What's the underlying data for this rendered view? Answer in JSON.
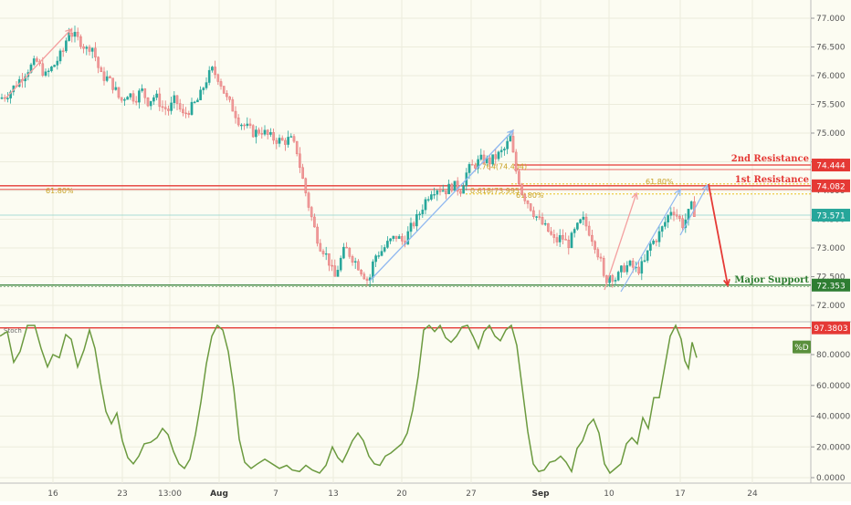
{
  "chart_data": [
    {
      "type": "candlestick",
      "ylim": [
        71.8,
        77.3
      ],
      "y_ticks": [
        "72.000",
        "72.500",
        "73.000",
        "73.500",
        "74.000",
        "74.500",
        "75.000",
        "75.500",
        "76.000",
        "76.500",
        "77.000"
      ],
      "x_ticks": [
        "16",
        "23",
        "13:00",
        "Aug",
        "7",
        "13",
        "20",
        "27",
        "Sep",
        "10",
        "17",
        "24"
      ],
      "x_bold_ticks": [
        "Aug",
        "Sep"
      ],
      "grid": true,
      "price_labels": [
        {
          "label": "74.444",
          "value": 74.444,
          "color": "#e53935"
        },
        {
          "label": "74.082",
          "value": 74.082,
          "color": "#e53935"
        },
        {
          "label": "73.571",
          "value": 73.571,
          "color": "#26a69a"
        },
        {
          "label": "72.353",
          "value": 72.353,
          "color": "#2e7d32"
        }
      ],
      "levels": [
        {
          "name": "2nd Resistance",
          "value": 74.444,
          "color": "#e53935"
        },
        {
          "name": "1st Resistance",
          "value": 74.082,
          "color": "#e53935"
        },
        {
          "name": "Major Support",
          "value": 72.353,
          "color": "#2e7d32"
        }
      ],
      "fib_labels": [
        "61.80%",
        "0.618(73.995)",
        "1.764(74.404)",
        "61.80%",
        "61.80%"
      ],
      "close_path": [
        [
          0,
          75.6
        ],
        [
          10,
          75.7
        ],
        [
          20,
          75.9
        ],
        [
          30,
          76.1
        ],
        [
          40,
          76.25
        ],
        [
          50,
          76.0
        ],
        [
          60,
          76.2
        ],
        [
          70,
          76.45
        ],
        [
          75,
          76.8
        ],
        [
          80,
          76.7
        ],
        [
          88,
          76.6
        ],
        [
          95,
          76.45
        ],
        [
          100,
          76.55
        ],
        [
          105,
          76.3
        ],
        [
          110,
          76.0
        ],
        [
          118,
          75.95
        ],
        [
          125,
          75.8
        ],
        [
          132,
          75.55
        ],
        [
          140,
          75.7
        ],
        [
          148,
          75.6
        ],
        [
          155,
          75.75
        ],
        [
          162,
          75.55
        ],
        [
          170,
          75.65
        ],
        [
          178,
          75.45
        ],
        [
          185,
          75.4
        ],
        [
          192,
          75.6
        ],
        [
          200,
          75.3
        ],
        [
          210,
          75.45
        ],
        [
          218,
          75.6
        ],
        [
          225,
          75.9
        ],
        [
          232,
          76.1
        ],
        [
          240,
          75.95
        ],
        [
          248,
          75.6
        ],
        [
          256,
          75.4
        ],
        [
          262,
          75.2
        ],
        [
          270,
          75.1
        ],
        [
          278,
          75.0
        ],
        [
          286,
          75.05
        ],
        [
          294,
          74.95
        ],
        [
          300,
          74.9
        ],
        [
          310,
          74.85
        ],
        [
          318,
          74.9
        ],
        [
          325,
          74.7
        ],
        [
          330,
          74.3
        ],
        [
          335,
          73.95
        ],
        [
          340,
          73.6
        ],
        [
          345,
          73.3
        ],
        [
          350,
          73.05
        ],
        [
          355,
          72.95
        ],
        [
          362,
          72.7
        ],
        [
          366,
          72.45
        ],
        [
          372,
          72.75
        ],
        [
          378,
          73.0
        ],
        [
          385,
          72.85
        ],
        [
          392,
          72.7
        ],
        [
          398,
          72.55
        ],
        [
          404,
          72.4
        ],
        [
          410,
          72.85
        ],
        [
          418,
          72.95
        ],
        [
          426,
          73.1
        ],
        [
          434,
          73.2
        ],
        [
          442,
          73.1
        ],
        [
          450,
          73.35
        ],
        [
          458,
          73.55
        ],
        [
          465,
          73.8
        ],
        [
          472,
          74.0
        ],
        [
          480,
          74.05
        ],
        [
          488,
          74.0
        ],
        [
          496,
          74.1
        ],
        [
          504,
          74.0
        ],
        [
          512,
          74.35
        ],
        [
          520,
          74.45
        ],
        [
          528,
          74.55
        ],
        [
          536,
          74.5
        ],
        [
          544,
          74.6
        ],
        [
          552,
          74.7
        ],
        [
          560,
          74.95
        ],
        [
          563,
          74.45
        ],
        [
          568,
          74.2
        ],
        [
          572,
          73.95
        ],
        [
          578,
          73.8
        ],
        [
          585,
          73.6
        ],
        [
          592,
          73.45
        ],
        [
          600,
          73.3
        ],
        [
          608,
          73.1
        ],
        [
          615,
          73.2
        ],
        [
          622,
          73.05
        ],
        [
          630,
          73.3
        ],
        [
          638,
          73.5
        ],
        [
          645,
          73.3
        ],
        [
          652,
          73.05
        ],
        [
          658,
          72.75
        ],
        [
          662,
          72.4
        ],
        [
          668,
          72.55
        ],
        [
          675,
          72.45
        ],
        [
          682,
          72.65
        ],
        [
          690,
          72.7
        ],
        [
          698,
          72.6
        ],
        [
          706,
          72.75
        ],
        [
          712,
          73.05
        ],
        [
          718,
          73.15
        ],
        [
          724,
          73.3
        ],
        [
          730,
          73.5
        ],
        [
          736,
          73.7
        ],
        [
          742,
          73.55
        ],
        [
          748,
          73.4
        ],
        [
          754,
          73.6
        ],
        [
          758,
          73.75
        ],
        [
          763,
          73.5
        ]
      ]
    },
    {
      "type": "line",
      "series": [
        {
          "name": "%D",
          "values": [
            [
              0,
              92
            ],
            [
              8,
              95
            ],
            [
              15,
              75
            ],
            [
              22,
              82
            ],
            [
              30,
              99
            ],
            [
              38,
              99
            ],
            [
              45,
              84
            ],
            [
              52,
              72
            ],
            [
              58,
              80
            ],
            [
              65,
              78
            ],
            [
              72,
              93
            ],
            [
              78,
              90
            ],
            [
              85,
              72
            ],
            [
              92,
              83
            ],
            [
              98,
              96
            ],
            [
              104,
              84
            ],
            [
              110,
              62
            ],
            [
              116,
              43
            ],
            [
              122,
              35
            ],
            [
              128,
              42
            ],
            [
              134,
              24
            ],
            [
              140,
              13
            ],
            [
              146,
              9
            ],
            [
              152,
              14
            ],
            [
              158,
              22
            ],
            [
              165,
              23
            ],
            [
              172,
              26
            ],
            [
              178,
              32
            ],
            [
              184,
              28
            ],
            [
              190,
              17
            ],
            [
              196,
              9
            ],
            [
              202,
              6
            ],
            [
              208,
              12
            ],
            [
              214,
              28
            ],
            [
              220,
              49
            ],
            [
              226,
              74
            ],
            [
              232,
              92
            ],
            [
              238,
              99
            ],
            [
              244,
              96
            ],
            [
              250,
              82
            ],
            [
              256,
              58
            ],
            [
              262,
              25
            ],
            [
              268,
              10
            ],
            [
              275,
              6
            ],
            [
              282,
              9
            ],
            [
              290,
              12
            ],
            [
              298,
              9
            ],
            [
              306,
              6
            ],
            [
              314,
              8
            ],
            [
              320,
              5
            ],
            [
              328,
              4
            ],
            [
              335,
              8
            ],
            [
              342,
              5
            ],
            [
              350,
              3
            ],
            [
              357,
              8
            ],
            [
              364,
              20
            ],
            [
              370,
              13
            ],
            [
              375,
              10
            ],
            [
              380,
              16
            ],
            [
              386,
              24
            ],
            [
              392,
              29
            ],
            [
              398,
              24
            ],
            [
              404,
              14
            ],
            [
              410,
              9
            ],
            [
              416,
              8
            ],
            [
              422,
              14
            ],
            [
              428,
              16
            ],
            [
              434,
              19
            ],
            [
              440,
              22
            ],
            [
              446,
              29
            ],
            [
              452,
              44
            ],
            [
              458,
              66
            ],
            [
              464,
              96
            ],
            [
              470,
              99
            ],
            [
              476,
              95
            ],
            [
              482,
              99
            ],
            [
              488,
              91
            ],
            [
              494,
              88
            ],
            [
              500,
              92
            ],
            [
              506,
              98
            ],
            [
              512,
              99
            ],
            [
              518,
              92
            ],
            [
              524,
              84
            ],
            [
              530,
              95
            ],
            [
              536,
              99
            ],
            [
              542,
              92
            ],
            [
              548,
              89
            ],
            [
              554,
              96
            ],
            [
              560,
              99
            ],
            [
              566,
              86
            ],
            [
              572,
              58
            ],
            [
              578,
              30
            ],
            [
              584,
              9
            ],
            [
              590,
              4
            ],
            [
              596,
              5
            ],
            [
              602,
              10
            ],
            [
              608,
              11
            ],
            [
              614,
              14
            ],
            [
              620,
              10
            ],
            [
              626,
              4
            ],
            [
              632,
              19
            ],
            [
              638,
              24
            ],
            [
              644,
              34
            ],
            [
              650,
              38
            ],
            [
              656,
              29
            ],
            [
              662,
              9
            ],
            [
              668,
              3
            ],
            [
              674,
              6
            ],
            [
              680,
              9
            ],
            [
              686,
              22
            ],
            [
              692,
              26
            ],
            [
              698,
              22
            ],
            [
              704,
              39
            ],
            [
              710,
              32
            ],
            [
              716,
              52
            ],
            [
              722,
              52
            ],
            [
              728,
              72
            ],
            [
              734,
              92
            ],
            [
              740,
              99
            ],
            [
              746,
              90
            ],
            [
              750,
              76
            ],
            [
              754,
              71
            ],
            [
              758,
              88
            ],
            [
              763,
              78
            ]
          ]
        }
      ],
      "ylim": [
        -3,
        110
      ],
      "y_ticks": [
        "0.0000",
        "20.0000",
        "40.0000",
        "60.0000",
        "80.0000"
      ],
      "indicator_label": "Stoch",
      "level": {
        "label": "97.3803",
        "value": 97.3803,
        "color": "#e53935"
      },
      "series_label": {
        "label": "%D",
        "color": "#5a8f3c"
      }
    }
  ]
}
